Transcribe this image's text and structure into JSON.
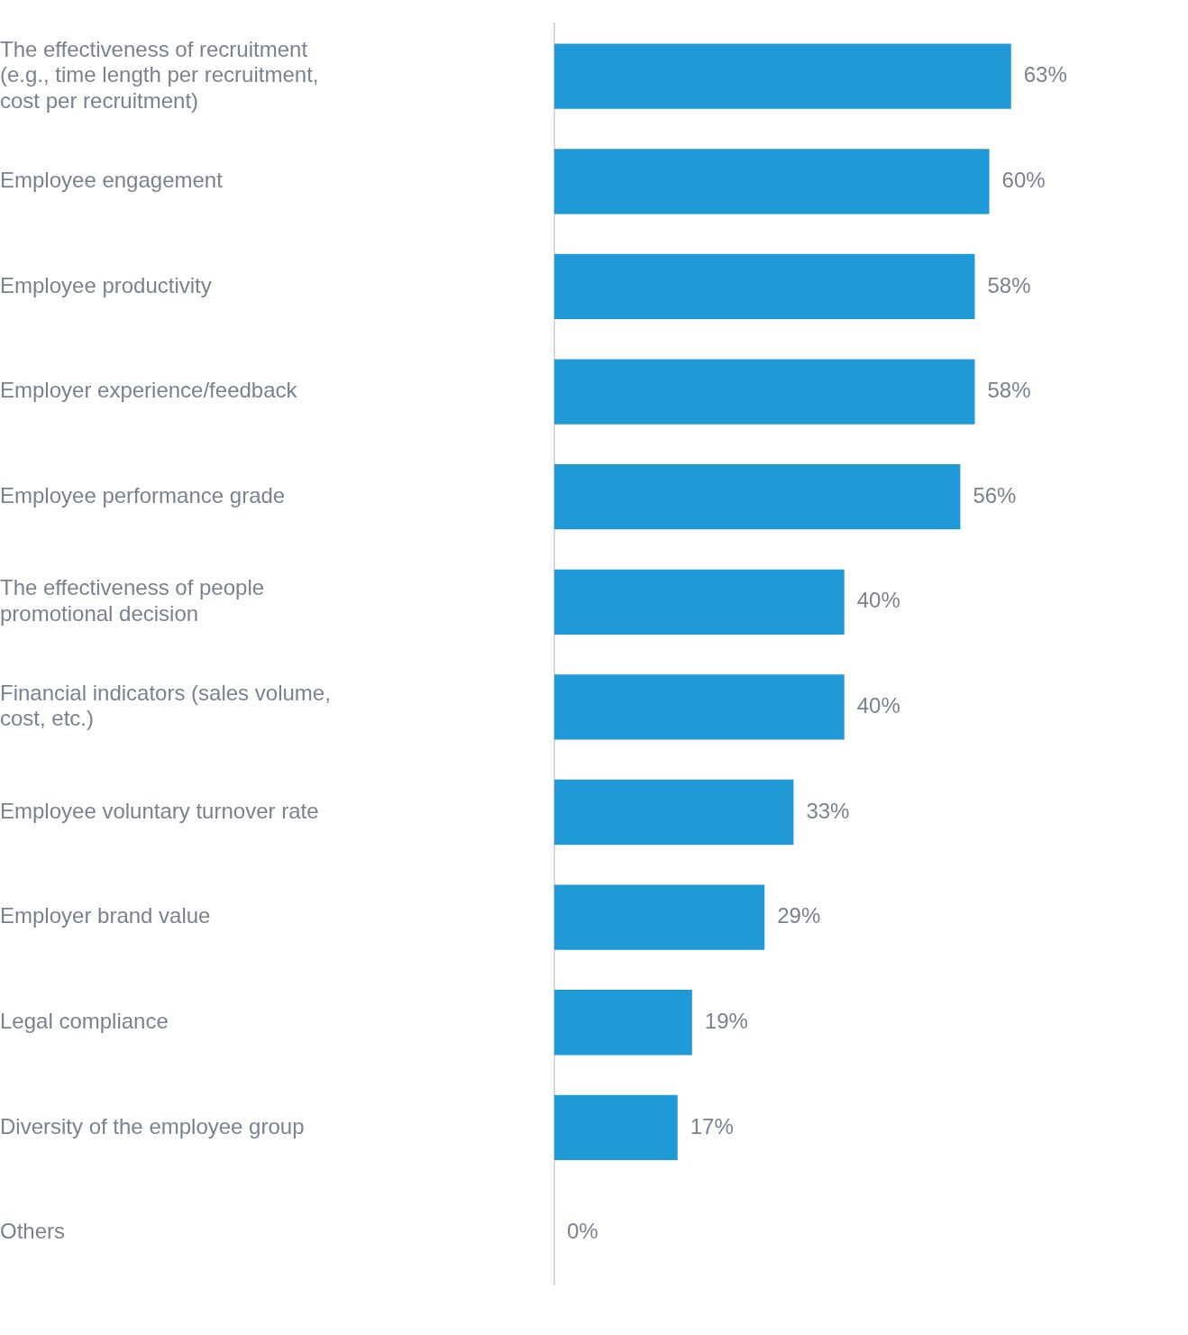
{
  "chart_data": {
    "type": "bar",
    "orientation": "horizontal",
    "categories": [
      "The effectiveness of recruitment (e.g., time length per recruitment, cost per recruitment)",
      "Employee engagement",
      "Employee productivity",
      "Employer experience/feedback",
      "Employee performance grade",
      "The effectiveness of people promotional decision",
      "Financial indicators (sales volume, cost, etc.)",
      "Employee voluntary turnover rate",
      "Employer brand value",
      "Legal compliance",
      "Diversity of the employee group",
      "Others"
    ],
    "values": [
      63,
      60,
      58,
      58,
      56,
      40,
      40,
      33,
      29,
      19,
      17,
      0
    ],
    "value_labels": [
      "63%",
      "60%",
      "58%",
      "58%",
      "56%",
      "40%",
      "40%",
      "33%",
      "29%",
      "19%",
      "17%",
      "0%"
    ],
    "color": "#1f9ad6",
    "legend": false
  }
}
